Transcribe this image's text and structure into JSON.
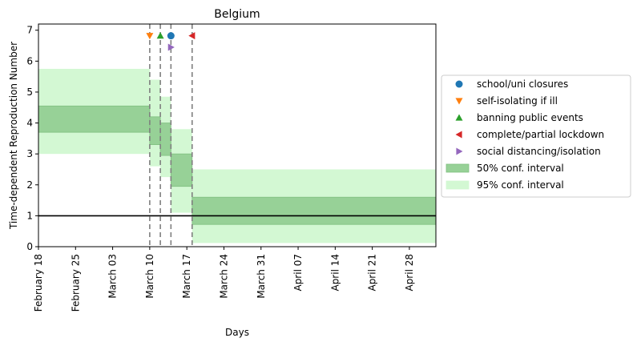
{
  "chart_data": {
    "type": "step-area",
    "title": "Belgium",
    "xlabel": "Days",
    "ylabel": "Time-dependent Reproduction Number",
    "ylim": [
      0,
      7.2
    ],
    "xlim": [
      "2020-02-18",
      "2020-05-03"
    ],
    "yticks": [
      0,
      1,
      2,
      3,
      4,
      5,
      6,
      7
    ],
    "xticks": [
      {
        "date": "2020-02-18",
        "label": "February 18"
      },
      {
        "date": "2020-02-25",
        "label": "February 25"
      },
      {
        "date": "2020-03-03",
        "label": "March 03"
      },
      {
        "date": "2020-03-10",
        "label": "March 10"
      },
      {
        "date": "2020-03-17",
        "label": "March 17"
      },
      {
        "date": "2020-03-24",
        "label": "March 24"
      },
      {
        "date": "2020-03-31",
        "label": "March 31"
      },
      {
        "date": "2020-04-07",
        "label": "April 07"
      },
      {
        "date": "2020-04-14",
        "label": "April 14"
      },
      {
        "date": "2020-04-21",
        "label": "April 21"
      },
      {
        "date": "2020-04-28",
        "label": "April 28"
      }
    ],
    "reference_line": 1,
    "segments": [
      {
        "start": "2020-02-18",
        "end": "2020-03-10",
        "ci50": [
          3.7,
          4.55
        ],
        "ci95": [
          3.0,
          5.75
        ]
      },
      {
        "start": "2020-03-10",
        "end": "2020-03-12",
        "ci50": [
          3.3,
          4.2
        ],
        "ci95": [
          2.6,
          5.4
        ]
      },
      {
        "start": "2020-03-12",
        "end": "2020-03-14",
        "ci50": [
          2.95,
          4.0
        ],
        "ci95": [
          2.25,
          4.85
        ]
      },
      {
        "start": "2020-03-14",
        "end": "2020-03-18",
        "ci50": [
          1.95,
          3.0
        ],
        "ci95": [
          1.1,
          3.8
        ]
      },
      {
        "start": "2020-03-18",
        "end": "2020-05-03",
        "ci50": [
          0.72,
          1.6
        ],
        "ci95": [
          0.12,
          2.5
        ]
      }
    ],
    "interventions": [
      {
        "name": "school/uni closures",
        "date": "2020-03-14",
        "y": 6.82,
        "marker": "circle",
        "color": "#1f77b4"
      },
      {
        "name": "self-isolating if ill",
        "date": "2020-03-10",
        "y": 6.82,
        "marker": "triangle-down",
        "color": "#ff7f0e"
      },
      {
        "name": "banning public events",
        "date": "2020-03-12",
        "y": 6.82,
        "marker": "triangle-up",
        "color": "#2ca02c"
      },
      {
        "name": "complete/partial lockdown",
        "date": "2020-03-18",
        "y": 6.82,
        "marker": "triangle-left",
        "color": "#d62728"
      },
      {
        "name": "social distancing/isolation",
        "date": "2020-03-14",
        "y": 6.45,
        "marker": "triangle-right",
        "color": "#9467bd"
      }
    ],
    "vlines": [
      "2020-03-10",
      "2020-03-12",
      "2020-03-14",
      "2020-03-18"
    ],
    "legend": {
      "placement": "right",
      "entries": [
        {
          "label": "school/uni closures",
          "kind": "marker",
          "marker": "circle",
          "color": "#1f77b4"
        },
        {
          "label": "self-isolating if ill",
          "kind": "marker",
          "marker": "triangle-down",
          "color": "#ff7f0e"
        },
        {
          "label": "banning public events",
          "kind": "marker",
          "marker": "triangle-up",
          "color": "#2ca02c"
        },
        {
          "label": "complete/partial lockdown",
          "kind": "marker",
          "marker": "triangle-left",
          "color": "#d62728"
        },
        {
          "label": "social distancing/isolation",
          "kind": "marker",
          "marker": "triangle-right",
          "color": "#9467bd"
        },
        {
          "label": "50% conf. interval",
          "kind": "patch",
          "color": "#97d197"
        },
        {
          "label": "95% conf. interval",
          "kind": "patch",
          "color": "#d3f8d3"
        }
      ]
    },
    "colors": {
      "ci50": "#97d197",
      "ci50_edge": "#7fbf7f",
      "ci95": "#d3f8d3",
      "vline": "#7f7f7f",
      "refline": "#000000"
    }
  }
}
